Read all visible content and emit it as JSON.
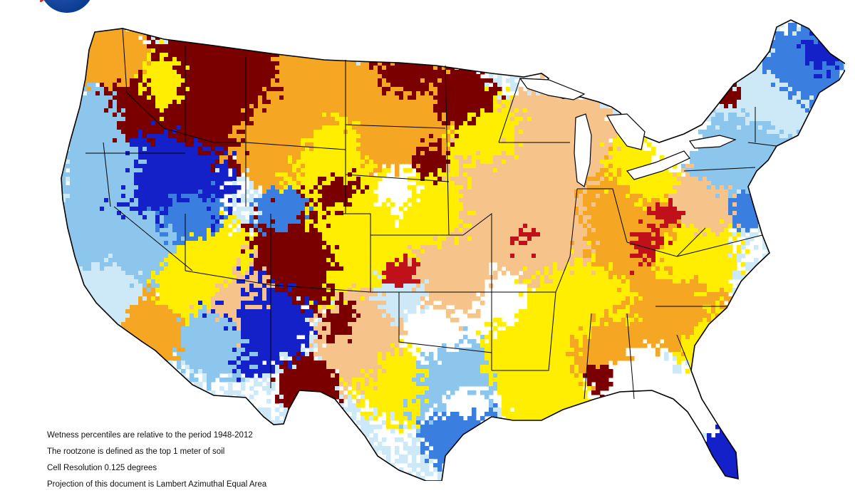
{
  "notes": [
    "Wetness percentiles are relative to the period 1948-2012",
    "The rootzone is defined as the top 1 meter of soil",
    "Cell Resolution 0.125 degrees",
    "Projection of this document is Lambert Azimuthal Equal Area"
  ],
  "colors": {
    "darkest_dry": "#7a0000",
    "dark_red": "#c0101a",
    "orange": "#f5a623",
    "tan": "#f6c38a",
    "yellow": "#ffee00",
    "white": "#ffffff",
    "pale_blue": "#cde9f7",
    "light_blue": "#8cc6ec",
    "mid_blue": "#3a7fe0",
    "dark_blue": "#1420c8"
  },
  "logo": "nasa-logo"
}
